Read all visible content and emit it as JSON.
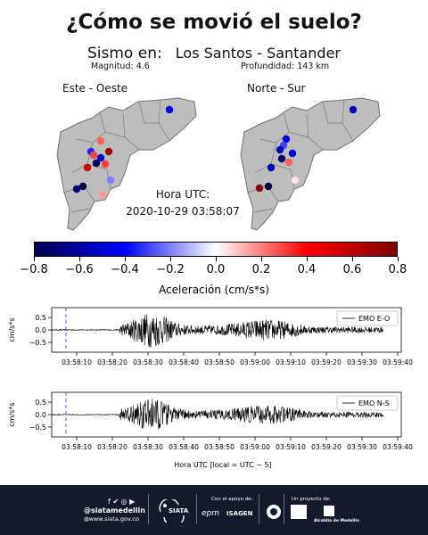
{
  "title": "¿Cómo se movió el suelo?",
  "event": {
    "label": "Sismo en:",
    "location": "Los Santos - Santander",
    "magnitude": "Magnitud: 4.6",
    "depth": "Profundidad: 143 km",
    "time_label": "Hora UTC:",
    "time_value": "2020-10-29 03:58:07"
  },
  "maps": [
    {
      "label": "Este - Oeste"
    },
    {
      "label": "Norte - Sur"
    }
  ],
  "colors": {
    "neg": "#00006e",
    "pos": "#7a0000",
    "map_fill": "#bdbdbd",
    "footer_bg": "#141a2b",
    "event_marker": "#8080ff"
  },
  "chart_data": [
    {
      "type": "heatmap",
      "title": "",
      "xlabel": "Aceleración (cm/s*s)",
      "range": [
        -0.8,
        0.8
      ],
      "ticks": [
        "−0.8",
        "−0.6",
        "−0.4",
        "−0.2",
        "0.0",
        "0.2",
        "0.4",
        "0.6",
        "0.8"
      ],
      "colormap": "seismic"
    },
    {
      "type": "line",
      "title": "",
      "ylabel": "cm/s*s",
      "xlabel": "",
      "legend": "top-right",
      "series": [
        {
          "name": "EMO E-O"
        }
      ],
      "ylim": [
        -0.9,
        0.9
      ],
      "yticks": [
        "0.5",
        "0.0",
        "−0.5"
      ],
      "xlim": [
        "03:58:03",
        "03:59:41"
      ],
      "xticks": [
        "03:58:10",
        "03:58:20",
        "03:58:30",
        "03:58:40",
        "03:58:50",
        "03:59:00",
        "03:59:10",
        "03:59:20",
        "03:59:30",
        "03:59:40"
      ],
      "event_marker": "03:58:07",
      "trace_range": [
        "03:58:03",
        "03:59:36"
      ],
      "peak_amplitude": 0.55
    },
    {
      "type": "line",
      "title": "",
      "ylabel": "cm/s*s",
      "xlabel": "Hora UTC [local = UTC − 5]",
      "legend": "top-right",
      "series": [
        {
          "name": "EMO N-S"
        }
      ],
      "ylim": [
        -0.9,
        0.9
      ],
      "yticks": [
        "0.5",
        "0.0",
        "−0.5"
      ],
      "xlim": [
        "03:58:03",
        "03:59:41"
      ],
      "xticks": [
        "03:58:10",
        "03:58:20",
        "03:58:30",
        "03:58:40",
        "03:58:50",
        "03:59:00",
        "03:59:10",
        "03:59:20",
        "03:59:30",
        "03:59:40"
      ],
      "event_marker": "03:58:07",
      "trace_range": [
        "03:58:03",
        "03:59:36"
      ],
      "peak_amplitude": 0.5
    }
  ],
  "footer": {
    "social": "f ✔ ◎ ▶",
    "handle": "@siatamedellin",
    "website": "www.siata.gov.co",
    "siata": "SIATA",
    "support_label": "Con el apoyo de:",
    "epm": "epm",
    "isagen": "ISAGEN",
    "project_label": "Un proyecto de:",
    "alcaldia": "Alcaldía de Medellín"
  }
}
